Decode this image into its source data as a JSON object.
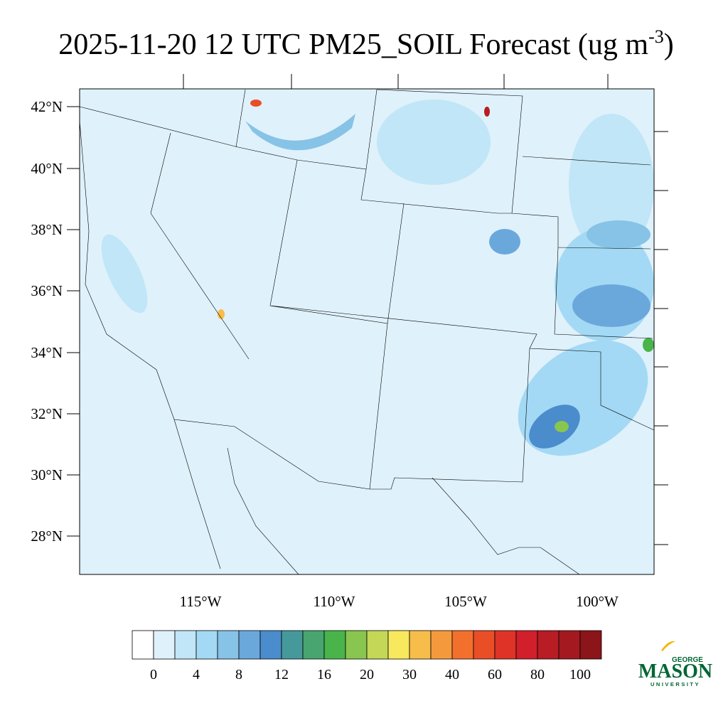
{
  "title": {
    "main": "2025-11-20 12 UTC PM25_SOIL Forecast (ug m",
    "superscript": "-3",
    "end": ")"
  },
  "lat_labels": [
    "42°N",
    "40°N",
    "38°N",
    "36°N",
    "34°N",
    "32°N",
    "30°N",
    "28°N"
  ],
  "lon_labels": [
    "115°W",
    "110°W",
    "105°W",
    "100°W"
  ],
  "colorbar": {
    "labels": [
      0,
      4,
      8,
      12,
      16,
      20,
      30,
      40,
      60,
      80,
      100
    ],
    "colors": [
      "#ffffff",
      "#dff1fb",
      "#c0e6f7",
      "#a3d9f4",
      "#86c3e6",
      "#6aa8dc",
      "#4a8ccc",
      "#45999b",
      "#48a56f",
      "#48b44a",
      "#88c64f",
      "#c4d757",
      "#f7e85d",
      "#f7bd4a",
      "#f59a3c",
      "#f3702c",
      "#e94e27",
      "#de3326",
      "#d11f2b",
      "#b81c25",
      "#a3191f",
      "#8b1519"
    ]
  },
  "logo": {
    "top": "GEORGE",
    "main": "MASON",
    "bottom": "UNIVERSITY"
  }
}
